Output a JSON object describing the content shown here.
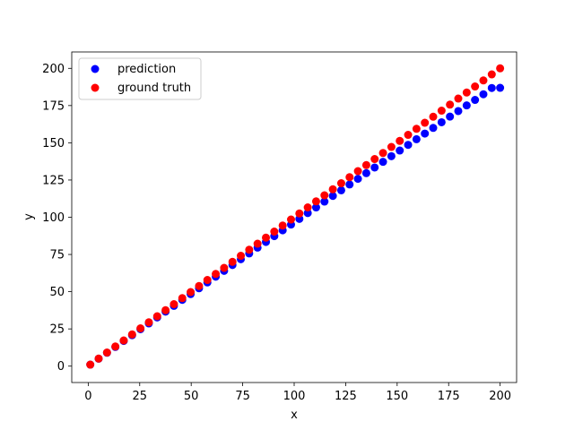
{
  "chart_data": {
    "type": "scatter",
    "xlabel": "x",
    "ylabel": "y",
    "xlim": [
      -8,
      208
    ],
    "ylim": [
      -11,
      211
    ],
    "xticks": [
      0,
      25,
      50,
      75,
      100,
      125,
      150,
      175,
      200
    ],
    "yticks": [
      0,
      25,
      50,
      75,
      100,
      125,
      150,
      175,
      200
    ],
    "grid": false,
    "legend_position": "top-left",
    "series": [
      {
        "name": "prediction",
        "color": "#0000ff",
        "points": [
          [
            1,
            1.0
          ],
          [
            5.06,
            5.0
          ],
          [
            9.12,
            9.0
          ],
          [
            13.18,
            12.9
          ],
          [
            17.24,
            16.9
          ],
          [
            21.31,
            20.8
          ],
          [
            25.37,
            24.8
          ],
          [
            29.43,
            28.7
          ],
          [
            33.49,
            32.7
          ],
          [
            37.55,
            36.6
          ],
          [
            41.61,
            40.5
          ],
          [
            45.67,
            44.5
          ],
          [
            49.73,
            48.4
          ],
          [
            53.8,
            52.3
          ],
          [
            57.86,
            56.2
          ],
          [
            61.92,
            60.1
          ],
          [
            65.98,
            64.0
          ],
          [
            70.04,
            67.9
          ],
          [
            74.1,
            71.8
          ],
          [
            78.16,
            75.7
          ],
          [
            82.22,
            79.6
          ],
          [
            86.29,
            83.4
          ],
          [
            90.35,
            87.3
          ],
          [
            94.41,
            91.2
          ],
          [
            98.47,
            95.1
          ],
          [
            102.53,
            98.9
          ],
          [
            106.59,
            102.8
          ],
          [
            110.65,
            106.6
          ],
          [
            114.71,
            110.5
          ],
          [
            118.78,
            114.3
          ],
          [
            122.84,
            118.1
          ],
          [
            126.9,
            122.0
          ],
          [
            130.96,
            125.8
          ],
          [
            135.02,
            129.6
          ],
          [
            139.08,
            133.4
          ],
          [
            143.14,
            137.2
          ],
          [
            147.2,
            141.0
          ],
          [
            151.27,
            144.8
          ],
          [
            155.33,
            148.6
          ],
          [
            159.39,
            152.4
          ],
          [
            163.45,
            156.2
          ],
          [
            167.51,
            160.0
          ],
          [
            171.57,
            163.8
          ],
          [
            175.63,
            167.6
          ],
          [
            179.69,
            171.3
          ],
          [
            183.76,
            175.1
          ],
          [
            187.82,
            178.8
          ],
          [
            191.88,
            182.6
          ],
          [
            195.94,
            186.8
          ],
          [
            200,
            186.9
          ]
        ]
      },
      {
        "name": "ground truth",
        "color": "#ff0000",
        "points": [
          [
            1,
            1.0
          ],
          [
            5.06,
            5.06
          ],
          [
            9.12,
            9.12
          ],
          [
            13.18,
            13.18
          ],
          [
            17.24,
            17.24
          ],
          [
            21.31,
            21.31
          ],
          [
            25.37,
            25.37
          ],
          [
            29.43,
            29.43
          ],
          [
            33.49,
            33.49
          ],
          [
            37.55,
            37.55
          ],
          [
            41.61,
            41.61
          ],
          [
            45.67,
            45.67
          ],
          [
            49.73,
            49.73
          ],
          [
            53.8,
            53.8
          ],
          [
            57.86,
            57.86
          ],
          [
            61.92,
            61.92
          ],
          [
            65.98,
            65.98
          ],
          [
            70.04,
            70.04
          ],
          [
            74.1,
            74.1
          ],
          [
            78.16,
            78.16
          ],
          [
            82.22,
            82.22
          ],
          [
            86.29,
            86.29
          ],
          [
            90.35,
            90.35
          ],
          [
            94.41,
            94.41
          ],
          [
            98.47,
            98.47
          ],
          [
            102.53,
            102.53
          ],
          [
            106.59,
            106.59
          ],
          [
            110.65,
            110.65
          ],
          [
            114.71,
            114.71
          ],
          [
            118.78,
            118.78
          ],
          [
            122.84,
            122.84
          ],
          [
            126.9,
            126.9
          ],
          [
            130.96,
            130.96
          ],
          [
            135.02,
            135.02
          ],
          [
            139.08,
            139.08
          ],
          [
            143.14,
            143.14
          ],
          [
            147.2,
            147.2
          ],
          [
            151.27,
            151.27
          ],
          [
            155.33,
            155.33
          ],
          [
            159.39,
            159.39
          ],
          [
            163.45,
            163.45
          ],
          [
            167.51,
            167.51
          ],
          [
            171.57,
            171.57
          ],
          [
            175.63,
            175.63
          ],
          [
            179.69,
            179.69
          ],
          [
            183.76,
            183.76
          ],
          [
            187.82,
            187.82
          ],
          [
            191.88,
            191.88
          ],
          [
            195.94,
            195.94
          ],
          [
            200,
            200
          ]
        ]
      }
    ]
  }
}
